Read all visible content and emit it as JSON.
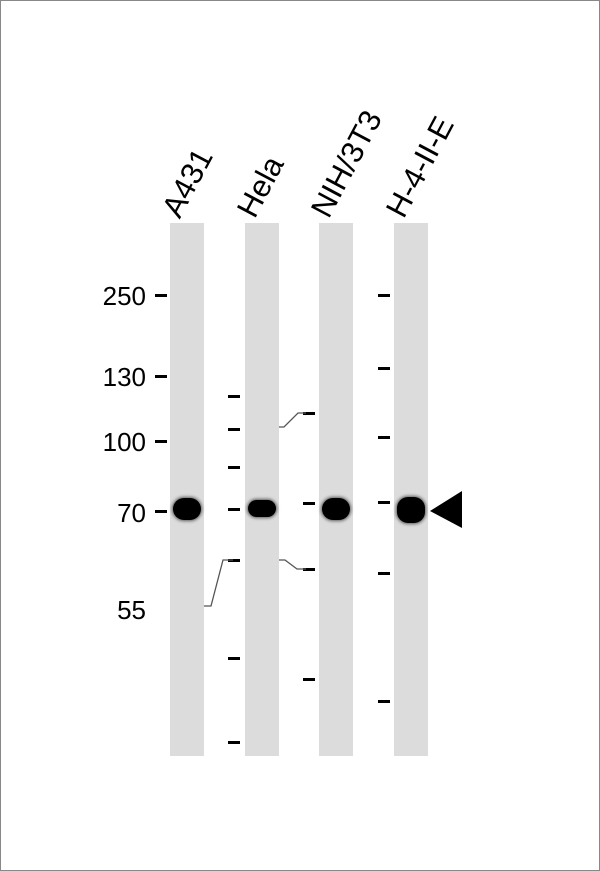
{
  "lanes": [
    {
      "label": "A431"
    },
    {
      "label": "Hela"
    },
    {
      "label": "NIH/3T3"
    },
    {
      "label": "H-4-II-E"
    }
  ],
  "markers": [
    "250",
    "130",
    "100",
    "70",
    "55"
  ],
  "arrow": "left-pointing-triangle"
}
